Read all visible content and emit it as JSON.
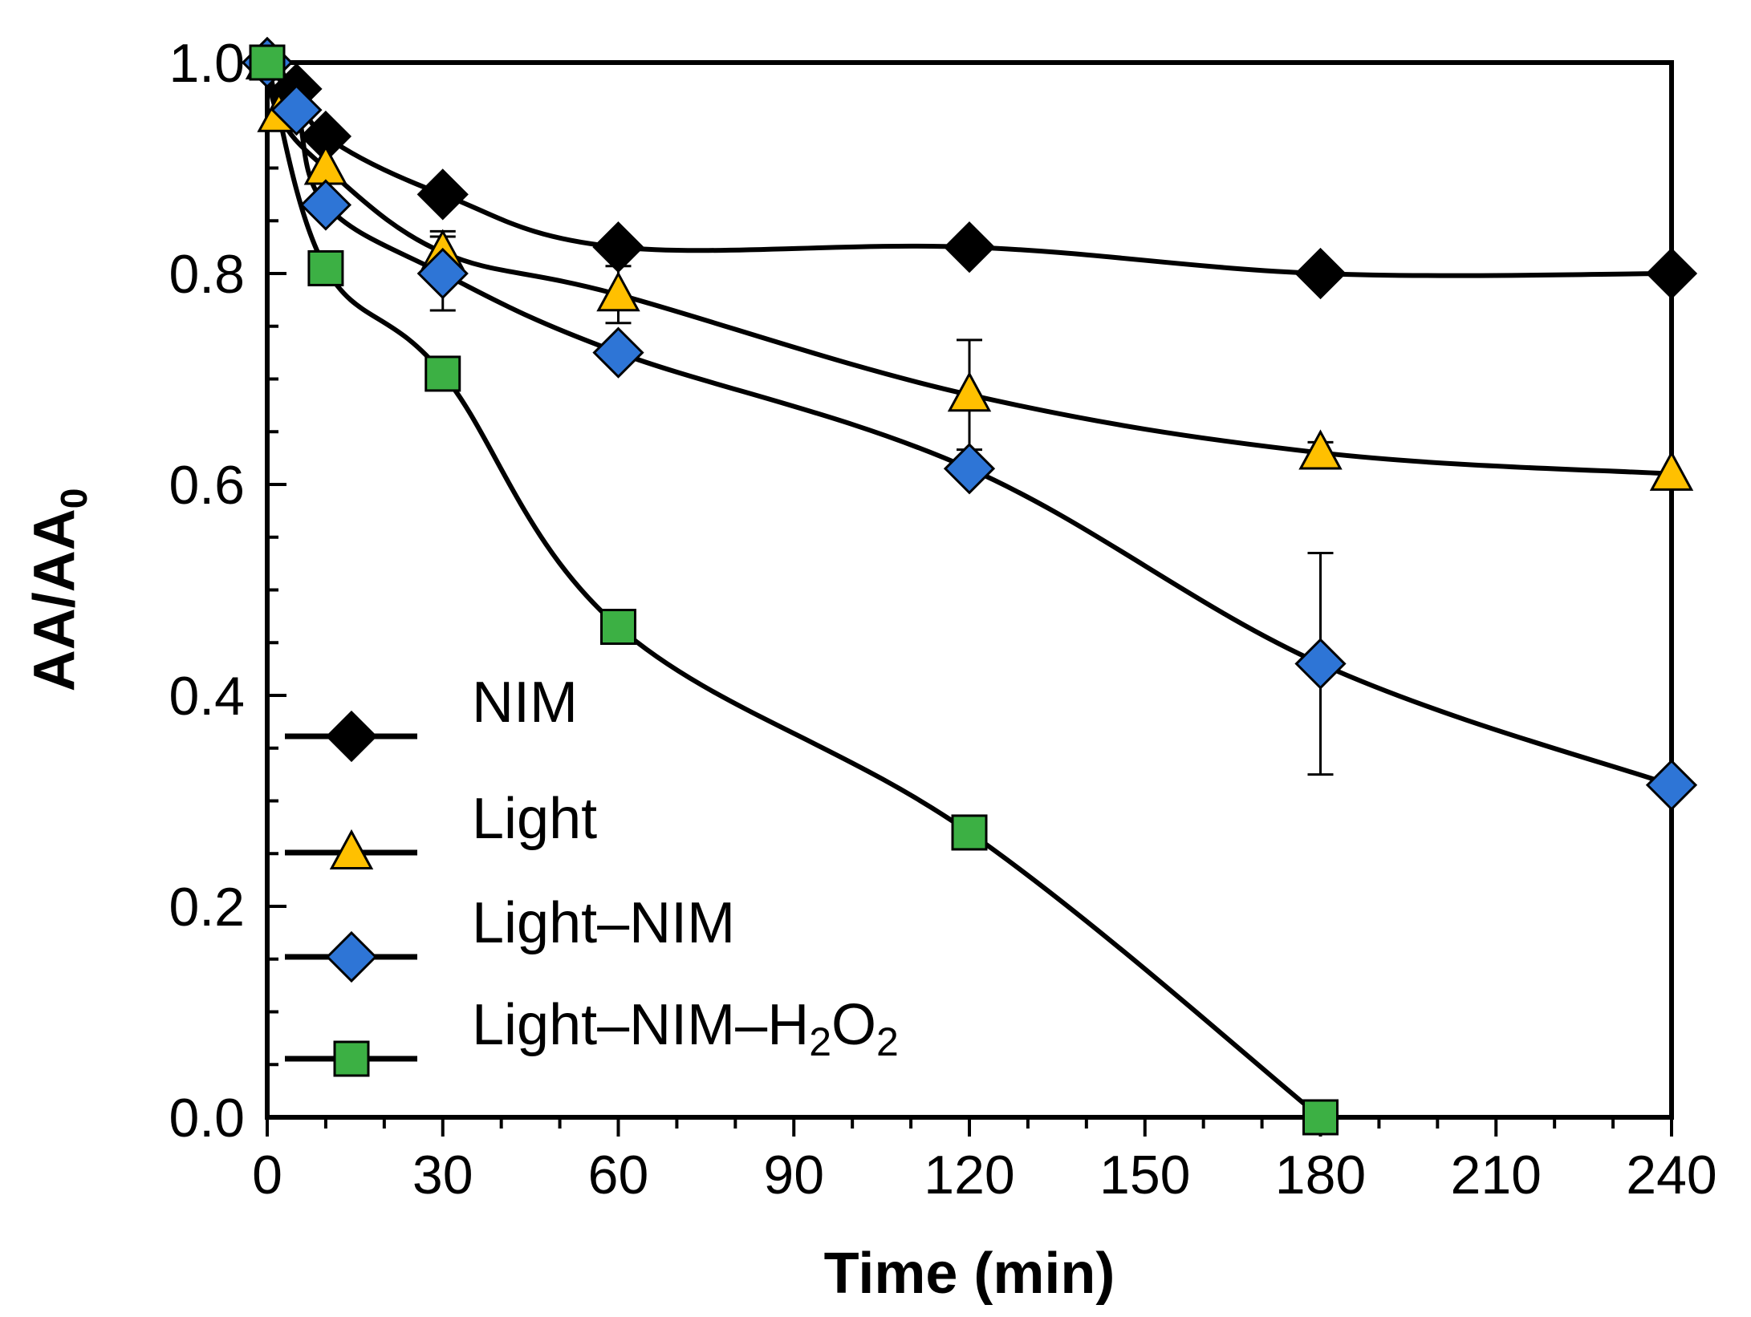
{
  "chart_data": {
    "type": "line",
    "title": "",
    "xlabel": "Time (min)",
    "ylabel": {
      "main": "AA/AA",
      "subscript": "0"
    },
    "xlim": [
      0,
      240
    ],
    "ylim": [
      0,
      1
    ],
    "xticks": [
      0,
      30,
      60,
      90,
      120,
      150,
      180,
      210,
      240
    ],
    "xtick_labels": [
      "0",
      "30",
      "60",
      "90",
      "120",
      "150",
      "180",
      "210",
      "240"
    ],
    "yticks": [
      0,
      0.2,
      0.4,
      0.6,
      0.8,
      1.0
    ],
    "ytick_labels": [
      "0.0",
      "0.2",
      "0.4",
      "0.6",
      "0.8",
      "1.0"
    ],
    "grid": false,
    "legend_position": "bottom-left",
    "series": [
      {
        "name": "NIM",
        "legend_parts": [
          {
            "t": "NIM"
          }
        ],
        "marker": "diamond",
        "color": "#000000",
        "x": [
          0,
          5,
          10,
          30,
          60,
          120,
          180,
          240
        ],
        "y": [
          1.0,
          0.975,
          0.93,
          0.875,
          0.825,
          0.825,
          0.8,
          0.8
        ]
      },
      {
        "name": "Light",
        "legend_parts": [
          {
            "t": "Light"
          }
        ],
        "marker": "triangle",
        "color": "#FFC000",
        "x": [
          0,
          2,
          10,
          30,
          60,
          120,
          180,
          240
        ],
        "y": [
          1.0,
          0.95,
          0.9,
          0.82,
          0.78,
          0.685,
          0.63,
          0.61
        ],
        "error": [
          0,
          0,
          0,
          0.02,
          0.027,
          0.052,
          0.01,
          0
        ]
      },
      {
        "name": "Light–NIM",
        "legend_parts": [
          {
            "t": "Light–NIM"
          }
        ],
        "marker": "diamond",
        "color": "#2E75D6",
        "x": [
          0,
          5,
          10,
          30,
          60,
          120,
          180,
          240
        ],
        "y": [
          1.0,
          0.955,
          0.865,
          0.8,
          0.725,
          0.615,
          0.43,
          0.315
        ],
        "error": [
          0,
          0,
          0,
          0.035,
          0,
          0,
          0.105,
          0
        ]
      },
      {
        "name": "Light–NIM–H2O2",
        "legend_parts": [
          {
            "t": "Light–NIM–H"
          },
          {
            "t": "2",
            "sub": true
          },
          {
            "t": "O"
          },
          {
            "t": "2",
            "sub": true
          }
        ],
        "marker": "square",
        "color": "#3CB044",
        "x": [
          0,
          10,
          30,
          60,
          120,
          180
        ],
        "y": [
          1.0,
          0.805,
          0.705,
          0.465,
          0.27,
          0.0
        ]
      }
    ]
  }
}
